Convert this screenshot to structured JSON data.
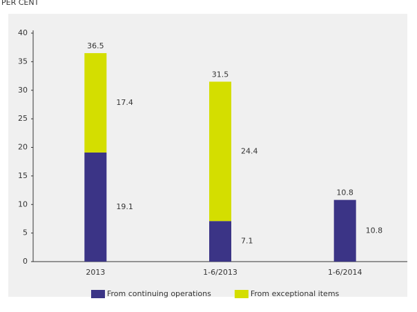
{
  "chart_data": {
    "type": "stacked_bar",
    "title": "PER CENT",
    "categories": [
      "2013",
      "1-6/2013",
      "1-6/2014"
    ],
    "series": [
      {
        "name": "From continuing operations",
        "color": "#3b3486",
        "values": [
          19.1,
          7.1,
          10.8
        ]
      },
      {
        "name": "From exceptional items",
        "color": "#d4de00",
        "values": [
          17.4,
          24.4,
          null
        ]
      }
    ],
    "totals": [
      36.5,
      31.5,
      10.8
    ],
    "ylim": [
      0,
      40
    ],
    "yticks": [
      0,
      5,
      10,
      15,
      20,
      25,
      30,
      35,
      40
    ]
  }
}
